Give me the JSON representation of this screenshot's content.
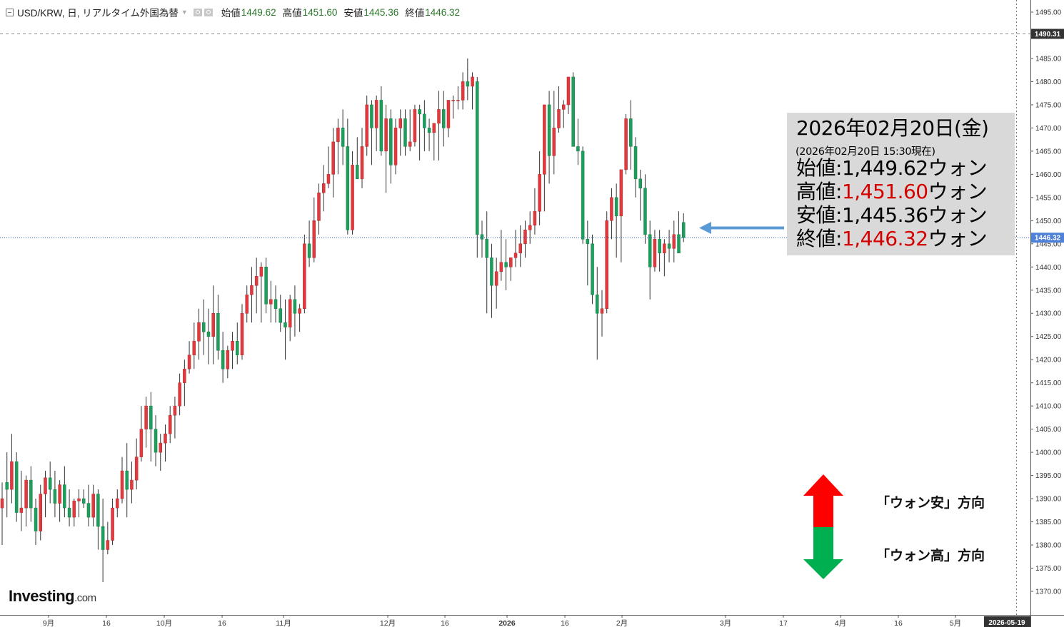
{
  "header": {
    "symbol_label": "USD/KRW, 日, リアルタイム外国為替",
    "open_label": "始値",
    "open_value": "1449.62",
    "high_label": "高値",
    "high_value": "1451.60",
    "low_label": "安値",
    "low_value": "1445.36",
    "close_label": "終値",
    "close_value": "1446.32"
  },
  "info_box": {
    "date": "2026年02月20日(金)",
    "timestamp": "(2026年02月20日 15:30現在)",
    "open_label": "始値:",
    "open_value": "1,449.62",
    "open_unit": "ウォン",
    "high_label": "高値:",
    "high_value": "1,451.60",
    "high_unit": "ウォン",
    "low_label": "安値:",
    "low_value": "1,445.36",
    "low_unit": "ウォン",
    "close_label": "終値:",
    "close_value": "1,446.32",
    "close_unit": "ウォン"
  },
  "legend": {
    "won_weak": "「ウォン安」方向",
    "won_strong": "「ウォン高」方向"
  },
  "brand": {
    "name": "Investing",
    "suffix": ".com"
  },
  "colors": {
    "up": "#e03a3e",
    "down": "#1e9d5c",
    "wick": "#333333",
    "price_line": "#2f5db8",
    "pointer_arrow": "#5b9bd5",
    "arrow_up": "#ff0000",
    "arrow_down": "#00b050",
    "highlight_tag": "#4f81d6",
    "last_tag": "#333333"
  },
  "chart_data": {
    "type": "candlestick",
    "ylim": [
      1362,
      1499
    ],
    "y_ticks": [
      "1370.00",
      "1375.00",
      "1380.00",
      "1385.00",
      "1390.00",
      "1395.00",
      "1400.00",
      "1405.00",
      "1410.00",
      "1415.00",
      "1420.00",
      "1425.00",
      "1430.00",
      "1435.00",
      "1440.00",
      "1445.00",
      "1450.00",
      "1455.00",
      "1460.00",
      "1465.00",
      "1470.00",
      "1475.00",
      "1480.00",
      "1485.00",
      "1490.00",
      "1495.00"
    ],
    "x_ticks": [
      "9月",
      "16",
      "10月",
      "16",
      "11月",
      "12月",
      "16",
      "2026",
      "16",
      "2月",
      "3月",
      "17",
      "4月",
      "16",
      "5月"
    ],
    "x_axis_end_label": "2026-05-19",
    "current_price_label": "1446.32",
    "highlight_price_label": "1490.31",
    "highlight_price_value": 1490.31,
    "current_price_value": 1446.32,
    "series_candles": [
      [
        1388.0,
        1393.5,
        1380.0,
        1390.0
      ],
      [
        1393.5,
        1400.0,
        1386.0,
        1392.0
      ],
      [
        1392.0,
        1404.0,
        1389.0,
        1398.0
      ],
      [
        1398.0,
        1400.0,
        1385.0,
        1387.0
      ],
      [
        1387.0,
        1396.0,
        1383.0,
        1388.0
      ],
      [
        1388.0,
        1395.0,
        1384.0,
        1394.0
      ],
      [
        1394.0,
        1397.0,
        1385.0,
        1388.0
      ],
      [
        1388.0,
        1390.0,
        1380.0,
        1383.0
      ],
      [
        1383.0,
        1393.0,
        1381.0,
        1391.0
      ],
      [
        1391.0,
        1396.0,
        1386.0,
        1394.5
      ],
      [
        1394.5,
        1398.0,
        1389.0,
        1392.0
      ],
      [
        1392.0,
        1396.0,
        1386.0,
        1389.0
      ],
      [
        1389.0,
        1394.0,
        1385.0,
        1393.0
      ],
      [
        1393.0,
        1397.0,
        1386.0,
        1388.0
      ],
      [
        1388.0,
        1392.0,
        1384.0,
        1386.0
      ],
      [
        1386.0,
        1390.0,
        1384.0,
        1389.5
      ],
      [
        1389.5,
        1392.0,
        1386.0,
        1390.0
      ],
      [
        1390.0,
        1392.0,
        1388.0,
        1389.0
      ],
      [
        1389.0,
        1393.0,
        1384.0,
        1386.0
      ],
      [
        1386.0,
        1393.0,
        1384.0,
        1391.0
      ],
      [
        1391.0,
        1392.0,
        1379.0,
        1384.0
      ],
      [
        1384.0,
        1390.0,
        1372.0,
        1379.0
      ],
      [
        1379.0,
        1385.0,
        1378.0,
        1381.0
      ],
      [
        1381.0,
        1390.0,
        1380.0,
        1388.0
      ],
      [
        1388.0,
        1392.0,
        1386.0,
        1390.0
      ],
      [
        1390.0,
        1399.0,
        1389.0,
        1396.0
      ],
      [
        1396.0,
        1402.0,
        1386.0,
        1392.0
      ],
      [
        1392.0,
        1398.0,
        1389.0,
        1394.0
      ],
      [
        1394.0,
        1403.0,
        1392.0,
        1399.0
      ],
      [
        1399.0,
        1410.0,
        1398.0,
        1405.0
      ],
      [
        1405.0,
        1412.0,
        1401.0,
        1410.0
      ],
      [
        1410.0,
        1413.0,
        1398.0,
        1405.0
      ],
      [
        1405.0,
        1408.0,
        1397.0,
        1400.0
      ],
      [
        1400.0,
        1404.0,
        1396.0,
        1402.0
      ],
      [
        1402.0,
        1406.0,
        1398.0,
        1404.0
      ],
      [
        1404.0,
        1410.0,
        1402.0,
        1408.0
      ],
      [
        1408.0,
        1412.0,
        1403.0,
        1410.0
      ],
      [
        1410.0,
        1417.0,
        1408.0,
        1415.0
      ],
      [
        1415.0,
        1420.0,
        1410.0,
        1418.0
      ],
      [
        1418.0,
        1424.0,
        1417.0,
        1421.0
      ],
      [
        1421.0,
        1428.0,
        1418.0,
        1424.0
      ],
      [
        1424.0,
        1431.0,
        1420.0,
        1428.0
      ],
      [
        1428.0,
        1433.0,
        1421.0,
        1426.0
      ],
      [
        1426.0,
        1431.0,
        1419.0,
        1425.0
      ],
      [
        1425.0,
        1436.0,
        1419.0,
        1430.0
      ],
      [
        1430.0,
        1434.0,
        1420.0,
        1422.0
      ],
      [
        1422.0,
        1426.0,
        1415.0,
        1418.0
      ],
      [
        1418.0,
        1423.0,
        1416.0,
        1422.0
      ],
      [
        1422.0,
        1426.0,
        1418.0,
        1424.0
      ],
      [
        1424.0,
        1428.0,
        1419.0,
        1421.0
      ],
      [
        1421.0,
        1432.0,
        1420.0,
        1430.0
      ],
      [
        1430.0,
        1436.0,
        1428.0,
        1434.0
      ],
      [
        1434.0,
        1440.0,
        1428.0,
        1436.0
      ],
      [
        1436.0,
        1442.0,
        1430.0,
        1438.0
      ],
      [
        1438.0,
        1441.0,
        1428.0,
        1440.0
      ],
      [
        1440.0,
        1442.0,
        1430.0,
        1432.0
      ],
      [
        1432.0,
        1437.0,
        1428.0,
        1433.0
      ],
      [
        1433.0,
        1436.0,
        1428.0,
        1431.0
      ],
      [
        1431.0,
        1434.0,
        1426.0,
        1428.0
      ],
      [
        1428.0,
        1433.0,
        1420.0,
        1427.0
      ],
      [
        1427.0,
        1434.0,
        1424.0,
        1433.0
      ],
      [
        1433.0,
        1436.0,
        1425.0,
        1430.0
      ],
      [
        1430.0,
        1432.0,
        1426.0,
        1431.0
      ],
      [
        1431.0,
        1447.0,
        1430.0,
        1445.0
      ],
      [
        1445.0,
        1450.0,
        1440.0,
        1442.0
      ],
      [
        1442.0,
        1455.0,
        1441.0,
        1450.0
      ],
      [
        1450.0,
        1458.0,
        1447.0,
        1456.0
      ],
      [
        1456.0,
        1462.0,
        1452.0,
        1458.0
      ],
      [
        1458.0,
        1466.0,
        1457.0,
        1460.0
      ],
      [
        1460.0,
        1470.0,
        1455.0,
        1467.0
      ],
      [
        1467.0,
        1472.0,
        1460.0,
        1470.0
      ],
      [
        1470.0,
        1474.0,
        1462.0,
        1466.0
      ],
      [
        1466.0,
        1472.0,
        1447.0,
        1448.0
      ],
      [
        1448.0,
        1465.0,
        1447.0,
        1462.0
      ],
      [
        1462.0,
        1468.0,
        1459.0,
        1459.0
      ],
      [
        1459.0,
        1470.0,
        1457.0,
        1466.0
      ],
      [
        1466.0,
        1477.0,
        1464.0,
        1475.0
      ],
      [
        1475.0,
        1476.0,
        1462.0,
        1470.0
      ],
      [
        1470.0,
        1477.0,
        1465.0,
        1476.0
      ],
      [
        1476.0,
        1479.0,
        1464.0,
        1465.0
      ],
      [
        1465.0,
        1475.0,
        1456.0,
        1472.0
      ],
      [
        1472.0,
        1474.0,
        1458.0,
        1462.0
      ],
      [
        1462.0,
        1472.0,
        1460.0,
        1470.0
      ],
      [
        1470.0,
        1474.0,
        1464.0,
        1472.0
      ],
      [
        1472.0,
        1474.0,
        1464.0,
        1466.0
      ],
      [
        1466.0,
        1474.0,
        1465.0,
        1467.0
      ],
      [
        1467.0,
        1475.0,
        1466.0,
        1474.0
      ],
      [
        1474.0,
        1475.0,
        1463.0,
        1473.0
      ],
      [
        1473.0,
        1476.0,
        1465.0,
        1470.0
      ],
      [
        1470.0,
        1472.0,
        1465.0,
        1469.0
      ],
      [
        1469.0,
        1471.0,
        1463.0,
        1471.0
      ],
      [
        1471.0,
        1478.0,
        1463.0,
        1474.0
      ],
      [
        1474.0,
        1478.0,
        1466.0,
        1470.0
      ],
      [
        1470.0,
        1475.0,
        1468.0,
        1476.0
      ],
      [
        1476.0,
        1477.0,
        1472.0,
        1476.0
      ],
      [
        1476.0,
        1479.0,
        1474.0,
        1476.0
      ],
      [
        1476.0,
        1482.0,
        1474.0,
        1480.0
      ],
      [
        1480.0,
        1485.0,
        1476.0,
        1479.0
      ],
      [
        1479.0,
        1482.0,
        1474.0,
        1481.0
      ],
      [
        1480.0,
        1481.0,
        1442.0,
        1447.0
      ],
      [
        1447.0,
        1450.0,
        1442.0,
        1446.0
      ],
      [
        1446.0,
        1452.0,
        1430.0,
        1442.0
      ],
      [
        1442.0,
        1445.0,
        1429.0,
        1436.0
      ],
      [
        1436.0,
        1442.0,
        1431.0,
        1439.0
      ],
      [
        1439.0,
        1448.0,
        1437.0,
        1441.0
      ],
      [
        1441.0,
        1446.0,
        1435.0,
        1440.0
      ],
      [
        1440.0,
        1442.0,
        1437.0,
        1442.0
      ],
      [
        1442.0,
        1448.0,
        1440.0,
        1443.0
      ],
      [
        1443.0,
        1449.0,
        1440.0,
        1445.0
      ],
      [
        1445.0,
        1450.0,
        1442.0,
        1448.0
      ],
      [
        1448.0,
        1452.0,
        1445.0,
        1449.0
      ],
      [
        1449.0,
        1457.0,
        1447.0,
        1452.0
      ],
      [
        1452.0,
        1465.0,
        1449.0,
        1460.0
      ],
      [
        1460.0,
        1472.0,
        1452.0,
        1475.0
      ],
      [
        1475.0,
        1478.0,
        1458.0,
        1464.0
      ],
      [
        1464.0,
        1478.0,
        1460.0,
        1470.0
      ],
      [
        1470.0,
        1479.0,
        1469.0,
        1474.0
      ],
      [
        1474.0,
        1476.0,
        1470.0,
        1475.0
      ],
      [
        1475.0,
        1481.0,
        1473.0,
        1481.0
      ],
      [
        1481.0,
        1482.0,
        1470.0,
        1466.0
      ],
      [
        1466.0,
        1472.0,
        1462.0,
        1465.0
      ],
      [
        1465.0,
        1466.0,
        1445.0,
        1446.0
      ],
      [
        1446.0,
        1450.0,
        1436.0,
        1445.0
      ],
      [
        1445.0,
        1447.0,
        1432.0,
        1434.0
      ],
      [
        1434.0,
        1440.0,
        1420.0,
        1430.0
      ],
      [
        1430.0,
        1435.0,
        1425.0,
        1431.0
      ],
      [
        1431.0,
        1452.0,
        1430.0,
        1450.0
      ],
      [
        1450.0,
        1457.0,
        1446.0,
        1455.0
      ],
      [
        1455.0,
        1458.0,
        1442.0,
        1451.0
      ],
      [
        1451.0,
        1461.0,
        1441.0,
        1461.0
      ],
      [
        1461.0,
        1473.0,
        1460.0,
        1472.0
      ],
      [
        1472.0,
        1476.0,
        1461.0,
        1466.0
      ],
      [
        1466.0,
        1468.0,
        1455.0,
        1459.0
      ],
      [
        1459.0,
        1461.0,
        1450.0,
        1457.0
      ],
      [
        1457.0,
        1460.0,
        1445.0,
        1447.0
      ],
      [
        1447.0,
        1450.0,
        1433.0,
        1440.0
      ],
      [
        1440.0,
        1448.0,
        1439.0,
        1446.0
      ],
      [
        1446.0,
        1448.0,
        1439.0,
        1443.0
      ],
      [
        1443.0,
        1446.0,
        1438.0,
        1445.0
      ],
      [
        1445.0,
        1448.0,
        1441.0,
        1444.0
      ],
      [
        1444.0,
        1450.0,
        1441.0,
        1447.0
      ],
      [
        1447.0,
        1452.0,
        1443.0,
        1443.0
      ],
      [
        1449.62,
        1451.6,
        1445.36,
        1446.32
      ]
    ]
  }
}
